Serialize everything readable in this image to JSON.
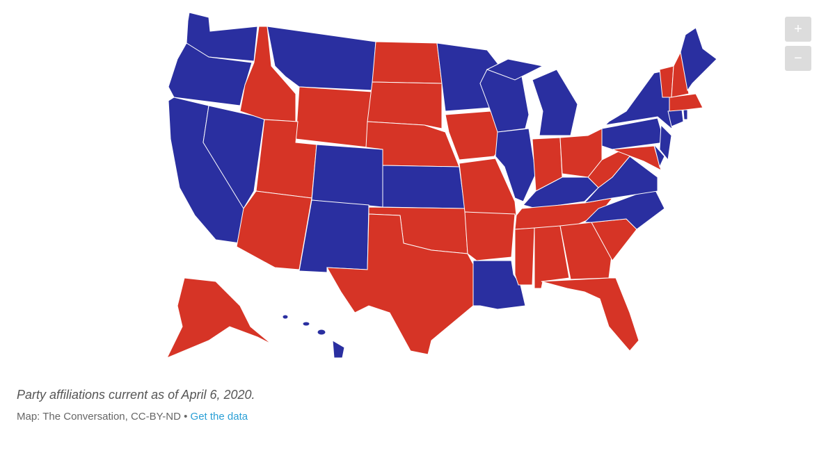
{
  "map": {
    "zoom_in": "+",
    "zoom_out": "−"
  },
  "caption": "Party affiliations current as of April 6, 2020.",
  "credit": {
    "source": "Map: The Conversation, CC-BY-ND",
    "separator": "•",
    "link": "Get the data"
  }
}
